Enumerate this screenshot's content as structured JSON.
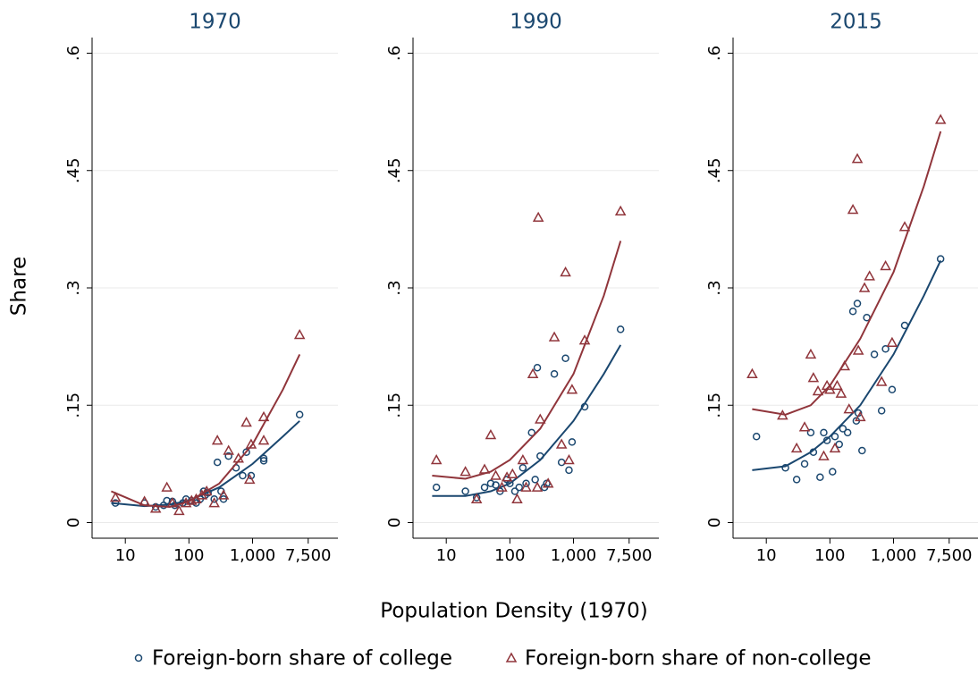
{
  "ylabel": "Share",
  "xlabel": "Population Density (1970)",
  "chart_data": [
    {
      "type": "scatter",
      "title": "1970",
      "xlog": true,
      "grid": true,
      "xlim": [
        3,
        22000
      ],
      "ylim": [
        -0.02,
        0.62
      ],
      "xticks": [
        10,
        100,
        {
          "value": 1000,
          "label": "1,000"
        },
        {
          "value": 7500,
          "label": "7,500"
        }
      ],
      "yticks": [
        0,
        {
          "value": 0.15,
          "label": ".15"
        },
        {
          "value": 0.3,
          "label": ".3"
        },
        {
          "value": 0.45,
          "label": ".45"
        },
        {
          "value": 0.6,
          "label": ".6"
        }
      ],
      "series": [
        {
          "name": "Foreign-born share of college",
          "color": "#1a476f",
          "marker": "circle",
          "x": [
            7,
            20,
            30,
            40,
            45,
            55,
            60,
            80,
            90,
            110,
            130,
            150,
            170,
            180,
            200,
            250,
            280,
            320,
            350,
            420,
            550,
            700,
            800,
            950,
            1500,
            1500,
            5500
          ],
          "values": [
            0.025,
            0.025,
            0.02,
            0.022,
            0.028,
            0.027,
            0.022,
            0.025,
            0.03,
            0.028,
            0.025,
            0.03,
            0.04,
            0.035,
            0.038,
            0.03,
            0.077,
            0.04,
            0.03,
            0.085,
            0.07,
            0.06,
            0.09,
            0.06,
            0.082,
            0.079,
            0.138
          ],
          "fit": {
            "x": [
              6,
              20,
              50,
              100,
              300,
              1000,
              3000,
              5500
            ],
            "values": [
              0.025,
              0.021,
              0.023,
              0.028,
              0.045,
              0.075,
              0.11,
              0.13
            ]
          }
        },
        {
          "name": "Foreign-born share of non-college",
          "color": "#90353b",
          "marker": "triangle",
          "x": [
            7,
            20,
            30,
            45,
            55,
            70,
            90,
            110,
            130,
            160,
            190,
            250,
            280,
            350,
            420,
            600,
            800,
            900,
            950,
            1500,
            1500,
            5500
          ],
          "values": [
            0.032,
            0.027,
            0.018,
            0.045,
            0.025,
            0.015,
            0.025,
            0.028,
            0.03,
            0.035,
            0.04,
            0.025,
            0.105,
            0.035,
            0.092,
            0.082,
            0.128,
            0.055,
            0.1,
            0.135,
            0.105,
            0.24
          ],
          "fit": {
            "x": [
              6,
              20,
              50,
              100,
              300,
              1000,
              3000,
              5500
            ],
            "values": [
              0.04,
              0.022,
              0.02,
              0.027,
              0.05,
              0.1,
              0.17,
              0.215
            ]
          }
        }
      ]
    },
    {
      "type": "scatter",
      "title": "1990",
      "xlog": true,
      "grid": true,
      "xlim": [
        3,
        22000
      ],
      "ylim": [
        -0.02,
        0.62
      ],
      "xticks": [
        10,
        100,
        {
          "value": 1000,
          "label": "1,000"
        },
        {
          "value": 7500,
          "label": "7,500"
        }
      ],
      "yticks": [
        0,
        {
          "value": 0.15,
          "label": ".15"
        },
        {
          "value": 0.3,
          "label": ".3"
        },
        {
          "value": 0.45,
          "label": ".45"
        },
        {
          "value": 0.6,
          "label": ".6"
        }
      ],
      "series": [
        {
          "name": "Foreign-born share of college",
          "color": "#1a476f",
          "marker": "circle",
          "x": [
            7,
            20,
            30,
            40,
            50,
            60,
            70,
            90,
            100,
            120,
            140,
            160,
            180,
            220,
            250,
            270,
            300,
            350,
            380,
            500,
            650,
            750,
            850,
            950,
            1500,
            5500
          ],
          "values": [
            0.045,
            0.04,
            0.032,
            0.045,
            0.05,
            0.048,
            0.04,
            0.055,
            0.05,
            0.04,
            0.045,
            0.07,
            0.05,
            0.115,
            0.055,
            0.198,
            0.085,
            0.045,
            0.05,
            0.19,
            0.077,
            0.21,
            0.067,
            0.103,
            0.148,
            0.247
          ],
          "fit": {
            "x": [
              6,
              20,
              50,
              100,
              300,
              1000,
              3000,
              5500
            ],
            "values": [
              0.034,
              0.034,
              0.04,
              0.05,
              0.08,
              0.13,
              0.19,
              0.227
            ]
          }
        },
        {
          "name": "Foreign-born share of non-college",
          "color": "#90353b",
          "marker": "triangle",
          "x": [
            7,
            20,
            30,
            40,
            50,
            60,
            75,
            90,
            110,
            130,
            160,
            180,
            230,
            270,
            280,
            300,
            400,
            500,
            650,
            750,
            850,
            950,
            1500,
            5500
          ],
          "values": [
            0.08,
            0.065,
            0.03,
            0.068,
            0.112,
            0.06,
            0.045,
            0.058,
            0.062,
            0.03,
            0.08,
            0.045,
            0.19,
            0.045,
            0.39,
            0.132,
            0.05,
            0.237,
            0.1,
            0.32,
            0.08,
            0.17,
            0.233,
            0.398
          ],
          "fit": {
            "x": [
              6,
              20,
              50,
              100,
              300,
              1000,
              3000,
              5500
            ],
            "values": [
              0.06,
              0.056,
              0.065,
              0.08,
              0.12,
              0.19,
              0.29,
              0.36
            ]
          }
        }
      ]
    },
    {
      "type": "scatter",
      "title": "2015",
      "xlog": true,
      "grid": true,
      "xlim": [
        3,
        22000
      ],
      "ylim": [
        -0.02,
        0.62
      ],
      "xticks": [
        10,
        100,
        {
          "value": 1000,
          "label": "1,000"
        },
        {
          "value": 7500,
          "label": "7,500"
        }
      ],
      "yticks": [
        0,
        {
          "value": 0.15,
          "label": ".15"
        },
        {
          "value": 0.3,
          "label": ".3"
        },
        {
          "value": 0.45,
          "label": ".45"
        },
        {
          "value": 0.6,
          "label": ".6"
        }
      ],
      "series": [
        {
          "name": "Foreign-born share of college",
          "color": "#1a476f",
          "marker": "circle",
          "x": [
            7,
            20,
            30,
            40,
            50,
            55,
            70,
            80,
            90,
            110,
            120,
            140,
            160,
            190,
            230,
            260,
            270,
            280,
            320,
            380,
            500,
            650,
            750,
            950,
            1500,
            5500
          ],
          "values": [
            0.11,
            0.07,
            0.055,
            0.075,
            0.115,
            0.09,
            0.058,
            0.115,
            0.105,
            0.065,
            0.11,
            0.1,
            0.12,
            0.115,
            0.27,
            0.13,
            0.28,
            0.14,
            0.092,
            0.262,
            0.215,
            0.143,
            0.222,
            0.17,
            0.252,
            0.337
          ],
          "fit": {
            "x": [
              6,
              20,
              50,
              100,
              300,
              1000,
              3000,
              5500
            ],
            "values": [
              0.067,
              0.072,
              0.09,
              0.11,
              0.15,
              0.215,
              0.29,
              0.335
            ]
          }
        },
        {
          "name": "Foreign-born share of non-college",
          "color": "#90353b",
          "marker": "triangle",
          "x": [
            6,
            18,
            30,
            40,
            50,
            55,
            65,
            80,
            90,
            100,
            120,
            130,
            150,
            170,
            200,
            230,
            270,
            280,
            300,
            350,
            420,
            650,
            750,
            950,
            1500,
            5500
          ],
          "values": [
            0.19,
            0.137,
            0.095,
            0.122,
            0.215,
            0.185,
            0.168,
            0.085,
            0.175,
            0.17,
            0.095,
            0.175,
            0.165,
            0.2,
            0.145,
            0.4,
            0.465,
            0.22,
            0.135,
            0.3,
            0.315,
            0.18,
            0.328,
            0.23,
            0.378,
            0.515
          ],
          "fit": {
            "x": [
              6,
              20,
              50,
              100,
              300,
              1000,
              3000,
              5500
            ],
            "values": [
              0.145,
              0.138,
              0.15,
              0.175,
              0.235,
              0.32,
              0.43,
              0.5
            ]
          }
        }
      ]
    }
  ]
}
